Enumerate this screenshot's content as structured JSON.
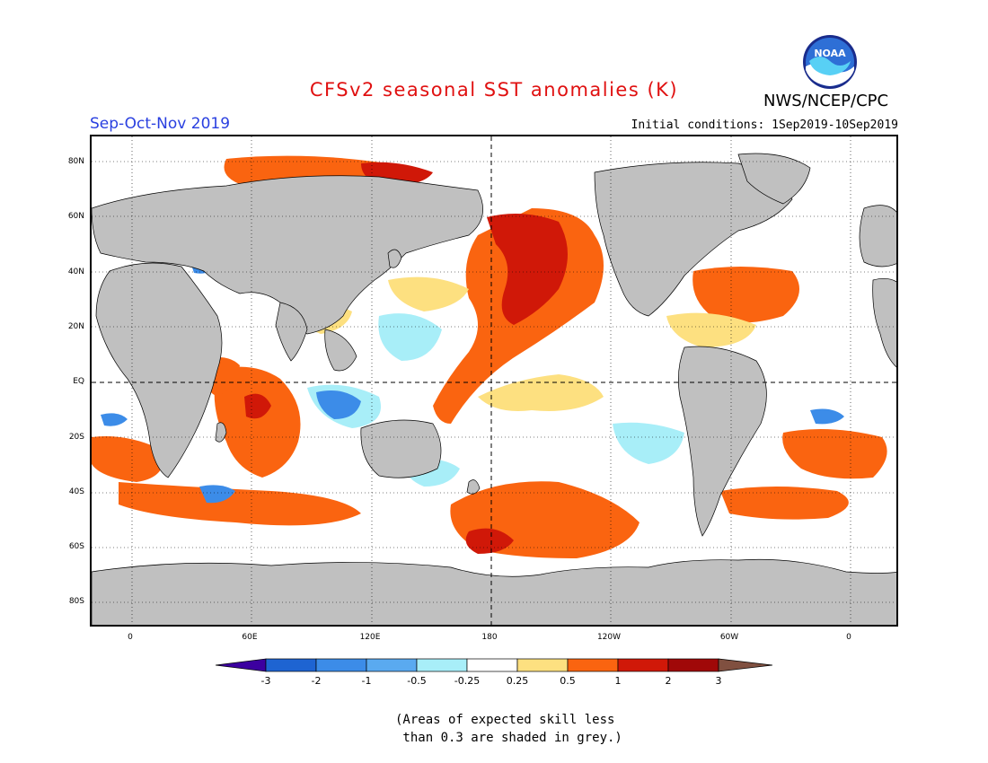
{
  "header": {
    "title": "CFSv2 seasonal SST anomalies (K)",
    "agency": "NWS/NCEP/CPC",
    "logo_text": "NOAA",
    "season": "Sep-Oct-Nov 2019",
    "initial_conditions": "Initial conditions: 1Sep2019-10Sep2019"
  },
  "map": {
    "lat_labels": [
      "80N",
      "60N",
      "40N",
      "20N",
      "EQ",
      "20S",
      "40S",
      "60S",
      "80S"
    ],
    "lon_labels": [
      "0",
      "60E",
      "120E",
      "180",
      "120W",
      "60W",
      "0"
    ],
    "colors": {
      "land": "#c0c0c0",
      "ocean": "#ffffff",
      "strong_warm": "#d01808",
      "warm": "#fa6410",
      "weak_warm": "#fde080",
      "weak_cool": "#a8eef8",
      "cool": "#3c8ce8"
    }
  },
  "colorbar": {
    "labels": [
      "-3",
      "-2",
      "-1",
      "-0.5",
      "-0.25",
      "0.25",
      "0.5",
      "1",
      "2",
      "3"
    ],
    "colors": [
      "#3c00a0",
      "#1e64d2",
      "#3c8ce8",
      "#5aaaf0",
      "#a8eef8",
      "#ffffff",
      "#fde080",
      "#fa6410",
      "#d01808",
      "#a00808",
      "#805040"
    ]
  },
  "note": {
    "line1": "(Areas of expected skill less",
    "line2": " than 0.3 are shaded in grey.)"
  }
}
